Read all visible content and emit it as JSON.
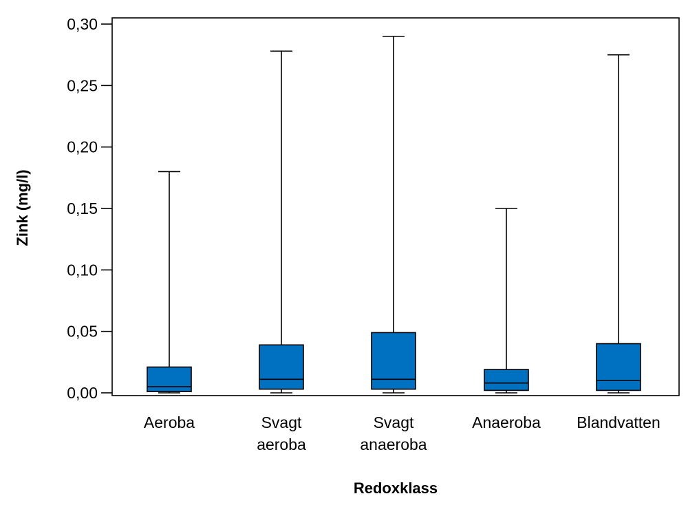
{
  "chart_data": {
    "type": "boxplot",
    "xlabel": "Redoxklass",
    "ylabel": "Zink (mg/l)",
    "ylim": [
      0,
      0.3
    ],
    "yticks": [
      0.0,
      0.05,
      0.1,
      0.15,
      0.2,
      0.25,
      0.3
    ],
    "ytick_labels": [
      "0,00",
      "0,05",
      "0,10",
      "0,15",
      "0,20",
      "0,25",
      "0,30"
    ],
    "grid": false,
    "box_color": "#0070C0",
    "categories": [
      {
        "lines": [
          "Aeroba"
        ],
        "min": 0.0,
        "q1": 0.001,
        "median": 0.005,
        "q3": 0.021,
        "max": 0.18
      },
      {
        "lines": [
          "Svagt",
          "aeroba"
        ],
        "min": 0.0,
        "q1": 0.003,
        "median": 0.011,
        "q3": 0.039,
        "max": 0.278
      },
      {
        "lines": [
          "Svagt",
          "anaeroba"
        ],
        "min": 0.0,
        "q1": 0.003,
        "median": 0.011,
        "q3": 0.049,
        "max": 0.29
      },
      {
        "lines": [
          "Anaeroba"
        ],
        "min": 0.0,
        "q1": 0.002,
        "median": 0.008,
        "q3": 0.019,
        "max": 0.15
      },
      {
        "lines": [
          "Blandvatten"
        ],
        "min": 0.0,
        "q1": 0.002,
        "median": 0.01,
        "q3": 0.04,
        "max": 0.275
      }
    ]
  }
}
